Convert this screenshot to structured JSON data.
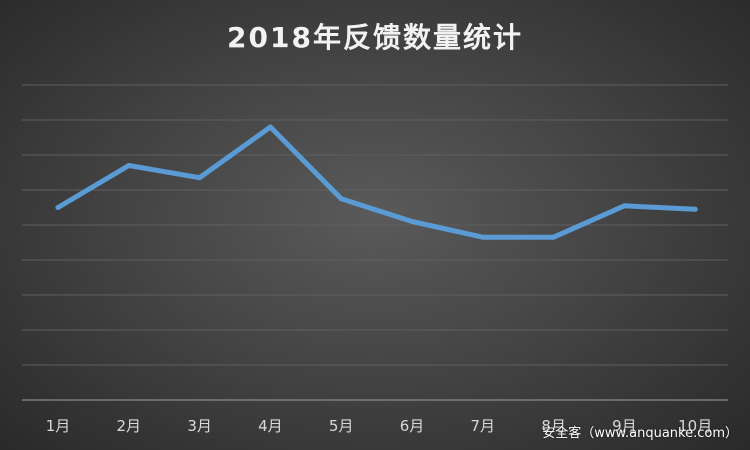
{
  "chart_data": {
    "type": "line",
    "title": "2018年反馈数量统计",
    "categories": [
      "1月",
      "2月",
      "3月",
      "4月",
      "5月",
      "6月",
      "7月",
      "8月",
      "9月",
      "10月"
    ],
    "series": [
      {
        "values": [
          55,
          67,
          63.5,
          78,
          57.5,
          51,
          46.5,
          46.5,
          55.5,
          54.5
        ]
      }
    ],
    "ylim": [
      0,
      90
    ],
    "y_gridlines": [
      0,
      10,
      20,
      30,
      40,
      50,
      60,
      70,
      80,
      90
    ],
    "grid": true,
    "y_tick_labels_visible": false,
    "legend": "none",
    "colors": {
      "line": "#5b9bd5",
      "gridline": "#5f5f5f",
      "axis": "#8a8a8a"
    }
  },
  "watermark": "安全客（www.anquanke.com）"
}
